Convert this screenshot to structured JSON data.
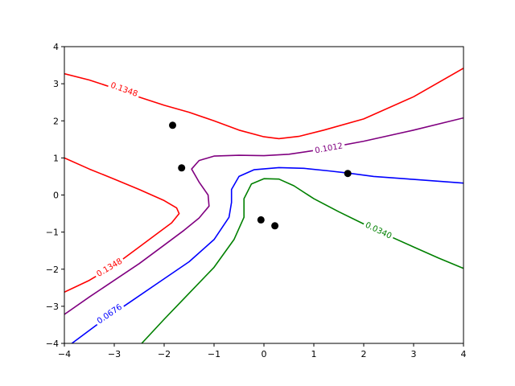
{
  "chart_data": {
    "type": "line",
    "title": "",
    "xlabel": "",
    "ylabel": "",
    "xlim": [
      -4,
      4
    ],
    "ylim": [
      -4,
      4
    ],
    "grid": false,
    "x_ticks": [
      "−4",
      "−3",
      "−2",
      "−1",
      "0",
      "1",
      "2",
      "3",
      "4"
    ],
    "y_ticks": [
      "−4",
      "−3",
      "−2",
      "−1",
      "0",
      "1",
      "2",
      "3",
      "4"
    ],
    "contours": [
      {
        "level": "0.1348",
        "color": "#ff0000",
        "label_at": [
          -2.8,
          2.85
        ],
        "segments": [
          [
            [
              -4,
              3.27
            ],
            [
              -3.5,
              3.1
            ],
            [
              -3.0,
              2.88
            ],
            [
              -2.5,
              2.64
            ],
            [
              -2.0,
              2.42
            ],
            [
              -1.5,
              2.23
            ],
            [
              -1.0,
              2.0
            ],
            [
              -0.5,
              1.75
            ],
            [
              0.0,
              1.57
            ],
            [
              0.3,
              1.52
            ],
            [
              0.7,
              1.58
            ],
            [
              1.2,
              1.75
            ],
            [
              2.0,
              2.05
            ],
            [
              3.0,
              2.65
            ],
            [
              4.0,
              3.42
            ]
          ],
          [
            [
              -4,
              1.0
            ],
            [
              -3.5,
              0.7
            ],
            [
              -3.0,
              0.43
            ],
            [
              -2.5,
              0.15
            ],
            [
              -2.0,
              -0.15
            ],
            [
              -1.75,
              -0.35
            ],
            [
              -1.7,
              -0.5
            ],
            [
              -1.85,
              -0.75
            ],
            [
              -2.1,
              -1.0
            ],
            [
              -2.5,
              -1.4
            ],
            [
              -3.0,
              -1.9
            ],
            [
              -3.5,
              -2.3
            ],
            [
              -4.0,
              -2.62
            ]
          ]
        ],
        "second_label_at": [
          -3.1,
          -1.95
        ]
      },
      {
        "level": "0.1012",
        "color": "#800080",
        "label_at": [
          1.3,
          1.27
        ],
        "segments": [
          [
            [
              -4,
              -3.22
            ],
            [
              -3.5,
              -2.75
            ],
            [
              -3.0,
              -2.3
            ],
            [
              -2.5,
              -1.85
            ],
            [
              -2.0,
              -1.35
            ],
            [
              -1.6,
              -0.95
            ],
            [
              -1.3,
              -0.62
            ],
            [
              -1.1,
              -0.3
            ],
            [
              -1.12,
              0.0
            ],
            [
              -1.3,
              0.35
            ],
            [
              -1.45,
              0.7
            ],
            [
              -1.3,
              0.93
            ],
            [
              -1.0,
              1.05
            ],
            [
              -0.5,
              1.07
            ],
            [
              0.0,
              1.06
            ],
            [
              0.5,
              1.1
            ],
            [
              1.0,
              1.2
            ],
            [
              2.0,
              1.45
            ],
            [
              3.0,
              1.75
            ],
            [
              4.0,
              2.08
            ]
          ]
        ]
      },
      {
        "level": "0.0676",
        "color": "#0000ff",
        "label_at": [
          -3.1,
          -3.2
        ],
        "segments": [
          [
            [
              -3.85,
              -4.0
            ],
            [
              -3.3,
              -3.45
            ],
            [
              -2.7,
              -2.9
            ],
            [
              -2.1,
              -2.35
            ],
            [
              -1.5,
              -1.8
            ],
            [
              -1.0,
              -1.2
            ],
            [
              -0.7,
              -0.6
            ],
            [
              -0.65,
              -0.2
            ],
            [
              -0.65,
              0.15
            ],
            [
              -0.5,
              0.5
            ],
            [
              -0.2,
              0.68
            ],
            [
              0.3,
              0.74
            ],
            [
              0.8,
              0.72
            ],
            [
              1.3,
              0.65
            ],
            [
              1.7,
              0.59
            ],
            [
              2.2,
              0.5
            ],
            [
              3.0,
              0.42
            ],
            [
              4.0,
              0.32
            ]
          ]
        ]
      },
      {
        "level": "0.0340",
        "color": "#008000",
        "label_at": [
          2.3,
          -0.95
        ],
        "segments": [
          [
            [
              -2.45,
              -4.0
            ],
            [
              -2.0,
              -3.35
            ],
            [
              -1.5,
              -2.65
            ],
            [
              -1.0,
              -1.95
            ],
            [
              -0.6,
              -1.2
            ],
            [
              -0.4,
              -0.6
            ],
            [
              -0.4,
              -0.1
            ],
            [
              -0.25,
              0.3
            ],
            [
              0.0,
              0.44
            ],
            [
              0.3,
              0.43
            ],
            [
              0.6,
              0.25
            ],
            [
              1.0,
              -0.1
            ],
            [
              1.5,
              -0.45
            ],
            [
              2.0,
              -0.78
            ],
            [
              2.5,
              -1.1
            ],
            [
              3.0,
              -1.4
            ],
            [
              3.5,
              -1.7
            ],
            [
              4.0,
              -1.98
            ]
          ]
        ]
      }
    ],
    "points": [
      {
        "x": -1.83,
        "y": 1.88
      },
      {
        "x": -1.65,
        "y": 0.73
      },
      {
        "x": 1.68,
        "y": 0.58
      },
      {
        "x": -0.06,
        "y": -0.67
      },
      {
        "x": 0.22,
        "y": -0.83
      }
    ],
    "point_color": "#000000"
  }
}
